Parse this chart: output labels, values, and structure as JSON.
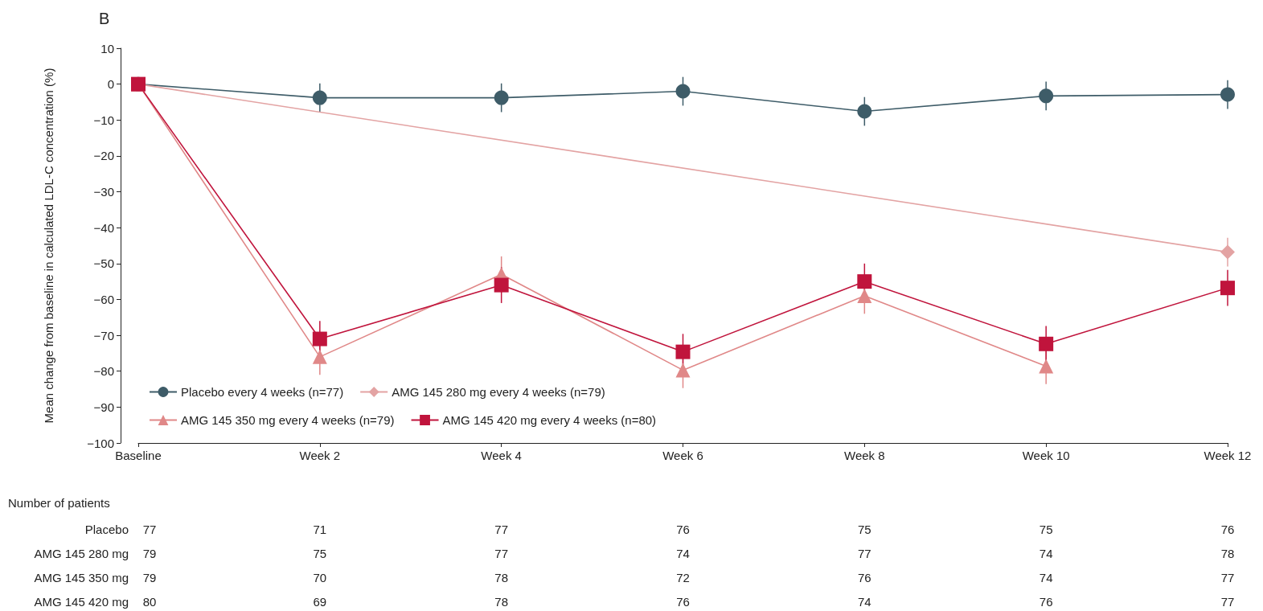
{
  "chart_data": {
    "type": "line",
    "title": "B",
    "ylabel": "Mean change from baseline in calculated LDL-C concentration (%)",
    "categories": [
      "Baseline",
      "Week 2",
      "Week 4",
      "Week 6",
      "Week 8",
      "Week 10",
      "Week 12"
    ],
    "ylim": [
      -100,
      10
    ],
    "yticks": [
      -100,
      -90,
      -80,
      -70,
      -60,
      -50,
      -40,
      -30,
      -20,
      -10,
      0,
      10
    ],
    "grid": false,
    "legend": "bottom left",
    "series": [
      {
        "name": "Placebo every 4 weeks (n=77)",
        "color": "#3e5c68",
        "marker": "circle",
        "values": [
          0,
          -3.8,
          -3.8,
          -2,
          -7.6,
          -3.3,
          -2.9
        ],
        "errors": [
          null,
          4,
          4,
          4,
          4,
          4,
          4
        ]
      },
      {
        "name": "AMG 145 280 mg every 4 weeks (n=79)",
        "color": "#e3a3a3",
        "marker": "diamond",
        "values": [
          0,
          null,
          null,
          null,
          null,
          null,
          -46.8
        ],
        "errors": [
          null,
          null,
          null,
          null,
          null,
          null,
          4
        ]
      },
      {
        "name": "AMG 145 350 mg every 4 weeks (n=79)",
        "color": "#e08888",
        "marker": "triangle",
        "values": [
          0,
          -76,
          -53,
          -79.7,
          -59,
          -78.6,
          null
        ],
        "errors": [
          null,
          5,
          5,
          5,
          5,
          5,
          null
        ]
      },
      {
        "name": "AMG 145 420 mg every 4 weeks (n=80)",
        "color": "#c0143c",
        "marker": "square",
        "values": [
          0,
          -71,
          -56,
          -74.6,
          -55,
          -72.4,
          -56.8
        ],
        "errors": [
          null,
          5,
          5,
          5,
          5,
          5,
          5
        ]
      }
    ],
    "annotations": [
      "Number of patients",
      "Placebo",
      "77",
      "71",
      "77",
      "76",
      "75",
      "75",
      "76",
      "AMG 145 280 mg",
      "79",
      "75",
      "77",
      "74",
      "77",
      "74",
      "78",
      "AMG 145 350 mg",
      "79",
      "70",
      "78",
      "72",
      "76",
      "74",
      "77",
      "AMG 145 420 mg",
      "80",
      "69",
      "78",
      "76",
      "74",
      "76",
      "77"
    ]
  }
}
